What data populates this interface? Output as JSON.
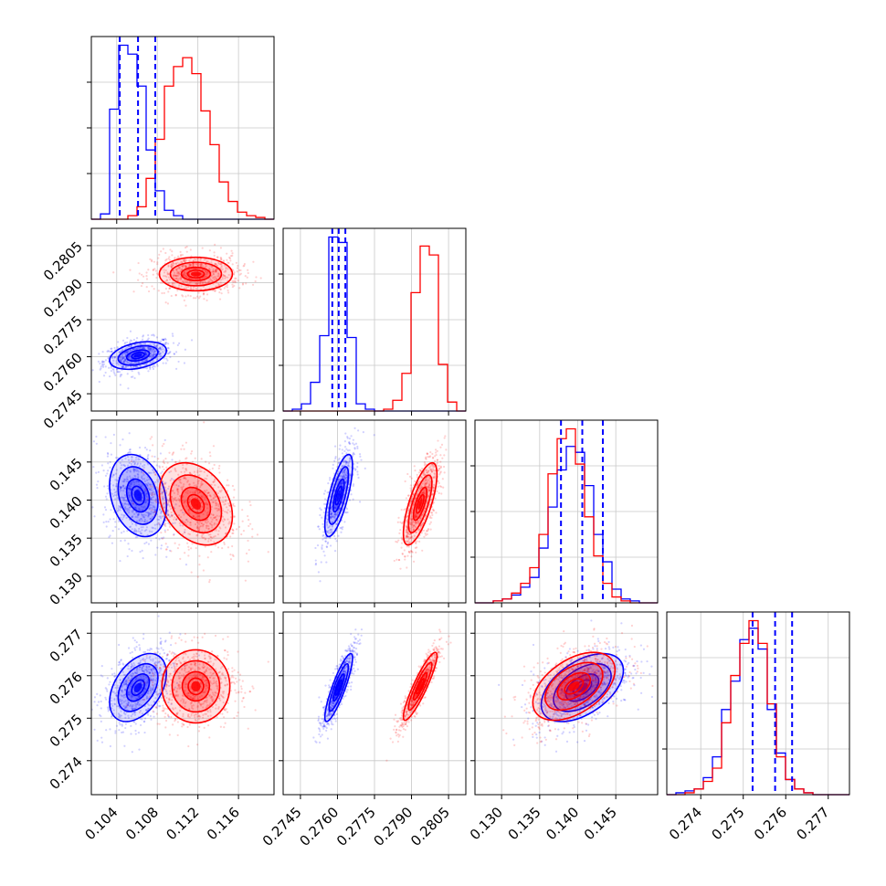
{
  "chart_data": {
    "type": "corner",
    "grid": true,
    "series_colors": {
      "blue": "#0000ff",
      "red": "#ff0000"
    },
    "parameters": [
      {
        "range": [
          0.1015,
          0.1195
        ],
        "ticks": [
          "0.104",
          "0.108",
          "0.112",
          "0.116"
        ],
        "tick_values": [
          0.104,
          0.108,
          0.112,
          0.116
        ],
        "quantiles_blue": [
          0.1043,
          0.1061,
          0.1078
        ],
        "series": [
          {
            "name": "blue",
            "mean": 0.1061,
            "sd": 0.0014,
            "hist": [
              0.0,
              0.03,
              0.62,
              0.98,
              0.93,
              0.75,
              0.39,
              0.16,
              0.05,
              0.02,
              0.0,
              0.0,
              0.0,
              0.0,
              0.0,
              0.0,
              0.0,
              0.0,
              0.0,
              0.0
            ]
          },
          {
            "name": "red",
            "mean": 0.1118,
            "sd": 0.0018,
            "hist": [
              0.0,
              0.0,
              0.0,
              0.0,
              0.02,
              0.07,
              0.23,
              0.45,
              0.75,
              0.86,
              0.91,
              0.82,
              0.61,
              0.42,
              0.21,
              0.1,
              0.04,
              0.02,
              0.01,
              0.0
            ]
          }
        ]
      },
      {
        "range": [
          0.2738,
          0.2812
        ],
        "ticks": [
          "0.2745",
          "0.2760",
          "0.2775",
          "0.2790",
          "0.2805"
        ],
        "tick_values": [
          0.2745,
          0.276,
          0.2775,
          0.279,
          0.2805
        ],
        "quantiles_blue": [
          0.27579,
          0.27605,
          0.27632
        ],
        "series": [
          {
            "name": "blue",
            "mean": 0.27605,
            "sd": 0.00028,
            "hist": [
              0.0,
              0.01,
              0.04,
              0.16,
              0.42,
              0.97,
              0.94,
              0.41,
              0.04,
              0.01,
              0.0,
              0.0,
              0.0,
              0.0,
              0.0,
              0.0,
              0.0,
              0.0,
              0.0,
              0.0
            ]
          },
          {
            "name": "red",
            "mean": 0.27935,
            "sd": 0.00034,
            "hist": [
              0.0,
              0.0,
              0.0,
              0.0,
              0.0,
              0.0,
              0.0,
              0.0,
              0.0,
              0.0,
              0.0,
              0.01,
              0.06,
              0.21,
              0.66,
              0.92,
              0.87,
              0.26,
              0.05,
              0.0
            ]
          }
        ]
      },
      {
        "range": [
          0.1265,
          0.1505
        ],
        "ticks": [
          "0.130",
          "0.135",
          "0.140",
          "0.145"
        ],
        "tick_values": [
          0.13,
          0.135,
          0.14,
          0.145
        ],
        "quantiles_blue": [
          0.1378,
          0.1406,
          0.1433
        ],
        "series": [
          {
            "name": "blue",
            "mean": 0.1406,
            "sd": 0.0027,
            "hist": [
              0.0,
              0.0,
              0.01,
              0.02,
              0.04,
              0.08,
              0.13,
              0.28,
              0.49,
              0.68,
              0.8,
              0.77,
              0.6,
              0.35,
              0.21,
              0.07,
              0.02,
              0.01,
              0.0,
              0.0
            ]
          },
          {
            "name": "red",
            "mean": 0.1395,
            "sd": 0.0027,
            "hist": [
              0.0,
              0.0,
              0.01,
              0.02,
              0.05,
              0.1,
              0.18,
              0.35,
              0.66,
              0.84,
              0.89,
              0.71,
              0.44,
              0.24,
              0.1,
              0.03,
              0.01,
              0.0,
              0.0,
              0.0
            ]
          }
        ]
      },
      {
        "range": [
          0.2732,
          0.2775
        ],
        "ticks": [
          "0.274",
          "0.275",
          "0.276",
          "0.277"
        ],
        "tick_values": [
          0.274,
          0.275,
          0.276,
          0.277
        ],
        "quantiles_blue": [
          0.27522,
          0.27575,
          0.27615
        ],
        "series": [
          {
            "name": "blue",
            "mean": 0.27572,
            "sd": 0.0004,
            "hist": [
              0.0,
              0.01,
              0.02,
              0.03,
              0.09,
              0.2,
              0.45,
              0.6,
              0.82,
              0.88,
              0.77,
              0.45,
              0.22,
              0.08,
              0.03,
              0.01,
              0.0,
              0.0,
              0.0,
              0.0
            ]
          },
          {
            "name": "red",
            "mean": 0.27575,
            "sd": 0.0004,
            "hist": [
              0.0,
              0.0,
              0.01,
              0.03,
              0.07,
              0.14,
              0.38,
              0.63,
              0.8,
              0.92,
              0.8,
              0.48,
              0.2,
              0.08,
              0.03,
              0.01,
              0.0,
              0.0,
              0.0,
              0.0
            ]
          }
        ]
      }
    ],
    "correlations": {
      "blue": {
        "1-0": 0.35,
        "2-0": -0.25,
        "2-1": 0.72,
        "3-0": 0.42,
        "3-1": 0.87,
        "3-2": 0.5
      },
      "red": {
        "1-0": 0.0,
        "2-0": -0.3,
        "2-1": 0.72,
        "3-0": 0.0,
        "3-1": 0.9,
        "3-2": 0.48
      }
    }
  }
}
